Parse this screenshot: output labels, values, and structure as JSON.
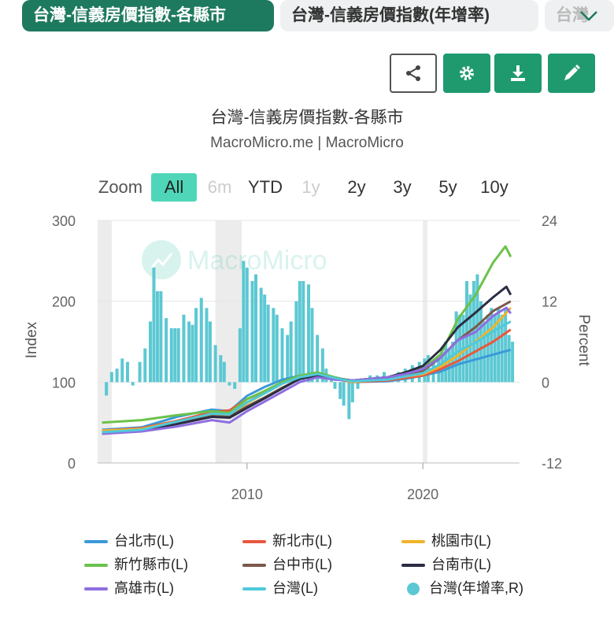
{
  "tabs": [
    {
      "label": "台灣-信義房價指數-各縣市"
    },
    {
      "label": "台灣-信義房價指數(年增率)"
    },
    {
      "label": "台灣"
    }
  ],
  "chart_data": {
    "type": "line",
    "title": "台灣-信義房價指數-各縣市",
    "subtitle": "MacroMicro.me | MacroMicro",
    "watermark": "MacroMicro",
    "zoom": {
      "label": "Zoom",
      "options": [
        "All",
        "6m",
        "YTD",
        "1y",
        "2y",
        "3y",
        "5y",
        "10y"
      ],
      "selected": "All",
      "disabled": [
        "6m",
        "1y"
      ]
    },
    "ylabel_left": "Index",
    "ylabel_right": "Percent",
    "y_left": {
      "range": [
        0,
        300
      ],
      "ticks": [
        0,
        100,
        200,
        300
      ]
    },
    "y_right": {
      "range": [
        -12,
        24
      ],
      "ticks": [
        -12,
        0,
        12,
        24
      ]
    },
    "x": {
      "range": [
        2001.5,
        2025.5
      ],
      "ticks": [
        {
          "v": 2010,
          "label": "2010"
        },
        {
          "v": 2020,
          "label": "2020"
        }
      ]
    },
    "recessions": [
      [
        2001.5,
        2002.3
      ],
      [
        2008.2,
        2009.7
      ],
      [
        2020.0,
        2020.25
      ]
    ],
    "series": [
      {
        "name": "台北市(L)",
        "color": "#3a9ad9",
        "axis": "L",
        "points": [
          [
            2001.75,
            41
          ],
          [
            2004,
            44
          ],
          [
            2006,
            57
          ],
          [
            2008,
            66
          ],
          [
            2009,
            64
          ],
          [
            2010,
            83
          ],
          [
            2011,
            94
          ],
          [
            2012,
            103
          ],
          [
            2013,
            108
          ],
          [
            2014,
            110
          ],
          [
            2015,
            104
          ],
          [
            2016,
            100
          ],
          [
            2018,
            101
          ],
          [
            2019,
            104
          ],
          [
            2020,
            108
          ],
          [
            2021,
            113
          ],
          [
            2022,
            122
          ],
          [
            2023,
            128
          ],
          [
            2024,
            134
          ],
          [
            2025,
            140
          ]
        ]
      },
      {
        "name": "新北市(L)",
        "color": "#e8583e",
        "axis": "L",
        "points": [
          [
            2001.75,
            40
          ],
          [
            2004,
            43
          ],
          [
            2006,
            52
          ],
          [
            2008,
            63
          ],
          [
            2009,
            65
          ],
          [
            2010,
            79
          ],
          [
            2011,
            88
          ],
          [
            2012,
            99
          ],
          [
            2013,
            107
          ],
          [
            2014,
            109
          ],
          [
            2015,
            104
          ],
          [
            2016,
            100
          ],
          [
            2018,
            102
          ],
          [
            2019,
            105
          ],
          [
            2020,
            108
          ],
          [
            2021,
            116
          ],
          [
            2022,
            126
          ],
          [
            2023,
            138
          ],
          [
            2024,
            150
          ],
          [
            2025,
            165
          ]
        ]
      },
      {
        "name": "桃園市(L)",
        "color": "#f0b429",
        "axis": "L",
        "points": [
          [
            2001.75,
            40
          ],
          [
            2004,
            42
          ],
          [
            2006,
            51
          ],
          [
            2008,
            59
          ],
          [
            2009,
            58
          ],
          [
            2010,
            74
          ],
          [
            2011,
            86
          ],
          [
            2012,
            98
          ],
          [
            2013,
            108
          ],
          [
            2014,
            111
          ],
          [
            2015,
            105
          ],
          [
            2016,
            100
          ],
          [
            2018,
            104
          ],
          [
            2019,
            107
          ],
          [
            2020,
            110
          ],
          [
            2021,
            119
          ],
          [
            2022,
            133
          ],
          [
            2023,
            150
          ],
          [
            2024,
            168
          ],
          [
            2025,
            192
          ]
        ]
      },
      {
        "name": "新竹縣市(L)",
        "color": "#6cc24a",
        "axis": "L",
        "points": [
          [
            2001.75,
            50
          ],
          [
            2004,
            53
          ],
          [
            2006,
            59
          ],
          [
            2008,
            64
          ],
          [
            2009,
            62
          ],
          [
            2010,
            79
          ],
          [
            2011,
            89
          ],
          [
            2012,
            100
          ],
          [
            2013,
            108
          ],
          [
            2014,
            112
          ],
          [
            2015,
            106
          ],
          [
            2016,
            101
          ],
          [
            2018,
            104
          ],
          [
            2019,
            110
          ],
          [
            2020,
            117
          ],
          [
            2021,
            134
          ],
          [
            2022,
            178
          ],
          [
            2023,
            208
          ],
          [
            2024,
            248
          ],
          [
            2024.7,
            268
          ],
          [
            2025,
            255
          ]
        ]
      },
      {
        "name": "台中市(L)",
        "color": "#7a5a4a",
        "axis": "L",
        "points": [
          [
            2001.75,
            37
          ],
          [
            2004,
            40
          ],
          [
            2006,
            49
          ],
          [
            2008,
            58
          ],
          [
            2009,
            57
          ],
          [
            2010,
            70
          ],
          [
            2011,
            81
          ],
          [
            2012,
            93
          ],
          [
            2013,
            104
          ],
          [
            2014,
            109
          ],
          [
            2015,
            105
          ],
          [
            2016,
            102
          ],
          [
            2018,
            106
          ],
          [
            2019,
            110
          ],
          [
            2020,
            114
          ],
          [
            2021,
            130
          ],
          [
            2022,
            152
          ],
          [
            2023,
            168
          ],
          [
            2024,
            188
          ],
          [
            2025,
            200
          ]
        ]
      },
      {
        "name": "台南市(L)",
        "color": "#2b2d42",
        "axis": "L",
        "points": [
          [
            2001.75,
            37
          ],
          [
            2004,
            40
          ],
          [
            2006,
            48
          ],
          [
            2008,
            57
          ],
          [
            2009,
            56
          ],
          [
            2010,
            68
          ],
          [
            2011,
            80
          ],
          [
            2012,
            92
          ],
          [
            2013,
            104
          ],
          [
            2014,
            108
          ],
          [
            2015,
            104
          ],
          [
            2016,
            102
          ],
          [
            2018,
            106
          ],
          [
            2019,
            112
          ],
          [
            2020,
            120
          ],
          [
            2021,
            140
          ],
          [
            2022,
            168
          ],
          [
            2023,
            186
          ],
          [
            2024,
            205
          ],
          [
            2024.75,
            218
          ],
          [
            2025,
            208
          ]
        ]
      },
      {
        "name": "高雄市(L)",
        "color": "#8f6de0",
        "axis": "L",
        "points": [
          [
            2001.75,
            36
          ],
          [
            2004,
            39
          ],
          [
            2006,
            45
          ],
          [
            2008,
            53
          ],
          [
            2009,
            50
          ],
          [
            2010,
            64
          ],
          [
            2011,
            76
          ],
          [
            2012,
            88
          ],
          [
            2013,
            100
          ],
          [
            2014,
            106
          ],
          [
            2015,
            103
          ],
          [
            2016,
            102
          ],
          [
            2018,
            106
          ],
          [
            2019,
            110
          ],
          [
            2020,
            116
          ],
          [
            2021,
            130
          ],
          [
            2022,
            152
          ],
          [
            2023,
            162
          ],
          [
            2024,
            182
          ],
          [
            2024.75,
            192
          ],
          [
            2025,
            185
          ]
        ]
      },
      {
        "name": "台灣(L)",
        "color": "#4fc9d9",
        "axis": "L",
        "points": [
          [
            2001.75,
            38
          ],
          [
            2004,
            41
          ],
          [
            2006,
            51
          ],
          [
            2008,
            61
          ],
          [
            2009,
            60
          ],
          [
            2010,
            75
          ],
          [
            2011,
            86
          ],
          [
            2012,
            98
          ],
          [
            2013,
            106
          ],
          [
            2014,
            110
          ],
          [
            2015,
            105
          ],
          [
            2016,
            101
          ],
          [
            2018,
            103
          ],
          [
            2019,
            107
          ],
          [
            2020,
            111
          ],
          [
            2021,
            122
          ],
          [
            2022,
            138
          ],
          [
            2023,
            149
          ],
          [
            2024,
            163
          ],
          [
            2025,
            175
          ]
        ]
      },
      {
        "name": "台灣(年增率,R)",
        "color": "#5cc8d3",
        "axis": "R",
        "type": "column",
        "points": [
          [
            2002.0,
            -2
          ],
          [
            2002.3,
            1.5
          ],
          [
            2002.6,
            2
          ],
          [
            2002.9,
            3.5
          ],
          [
            2003.2,
            3
          ],
          [
            2003.5,
            -0.5
          ],
          [
            2003.9,
            3
          ],
          [
            2004.2,
            5
          ],
          [
            2004.5,
            9
          ],
          [
            2004.7,
            17
          ],
          [
            2004.9,
            13.5
          ],
          [
            2005.1,
            13.5
          ],
          [
            2005.4,
            9.5
          ],
          [
            2005.7,
            8
          ],
          [
            2005.9,
            8
          ],
          [
            2006.1,
            8
          ],
          [
            2006.4,
            10
          ],
          [
            2006.7,
            9
          ],
          [
            2006.9,
            8.5
          ],
          [
            2007.1,
            11
          ],
          [
            2007.4,
            12.5
          ],
          [
            2007.7,
            11
          ],
          [
            2007.9,
            9
          ],
          [
            2008.2,
            5.5
          ],
          [
            2008.5,
            4
          ],
          [
            2008.7,
            3
          ],
          [
            2009.0,
            -0.5
          ],
          [
            2009.3,
            -1
          ],
          [
            2009.6,
            8
          ],
          [
            2009.8,
            18
          ],
          [
            2010.0,
            17
          ],
          [
            2010.3,
            15
          ],
          [
            2010.5,
            16
          ],
          [
            2010.8,
            14
          ],
          [
            2011.0,
            13
          ],
          [
            2011.2,
            11.5
          ],
          [
            2011.5,
            11
          ],
          [
            2011.7,
            10
          ],
          [
            2012.0,
            8
          ],
          [
            2012.3,
            7
          ],
          [
            2012.5,
            9
          ],
          [
            2012.8,
            12
          ],
          [
            2013.0,
            15
          ],
          [
            2013.2,
            15
          ],
          [
            2013.5,
            14.5
          ],
          [
            2013.7,
            11
          ],
          [
            2014.0,
            7
          ],
          [
            2014.3,
            5
          ],
          [
            2014.5,
            2
          ],
          [
            2014.8,
            0.5
          ],
          [
            2015.0,
            -1
          ],
          [
            2015.3,
            -2.5
          ],
          [
            2015.5,
            -3.5
          ],
          [
            2015.8,
            -5.5
          ],
          [
            2016.0,
            -3
          ],
          [
            2016.3,
            -1
          ],
          [
            2016.7,
            0.5
          ],
          [
            2017.0,
            1
          ],
          [
            2017.4,
            1
          ],
          [
            2017.8,
            1.5
          ],
          [
            2018.2,
            1
          ],
          [
            2018.6,
            1.5
          ],
          [
            2019.0,
            2
          ],
          [
            2019.4,
            2.5
          ],
          [
            2019.8,
            3
          ],
          [
            2020.1,
            3.5
          ],
          [
            2020.3,
            4
          ],
          [
            2020.6,
            3
          ],
          [
            2020.9,
            4
          ],
          [
            2021.1,
            4.5
          ],
          [
            2021.3,
            6
          ],
          [
            2021.5,
            5
          ],
          [
            2021.7,
            6
          ],
          [
            2021.9,
            10.5
          ],
          [
            2022.1,
            10
          ],
          [
            2022.3,
            10
          ],
          [
            2022.5,
            15
          ],
          [
            2022.7,
            13
          ],
          [
            2022.9,
            15
          ],
          [
            2023.1,
            16
          ],
          [
            2023.3,
            12
          ],
          [
            2023.5,
            9
          ],
          [
            2023.7,
            10
          ],
          [
            2023.9,
            11
          ],
          [
            2024.1,
            10
          ],
          [
            2024.3,
            11
          ],
          [
            2024.5,
            10
          ],
          [
            2024.7,
            11
          ],
          [
            2024.9,
            7
          ],
          [
            2025.1,
            6
          ]
        ]
      }
    ]
  }
}
